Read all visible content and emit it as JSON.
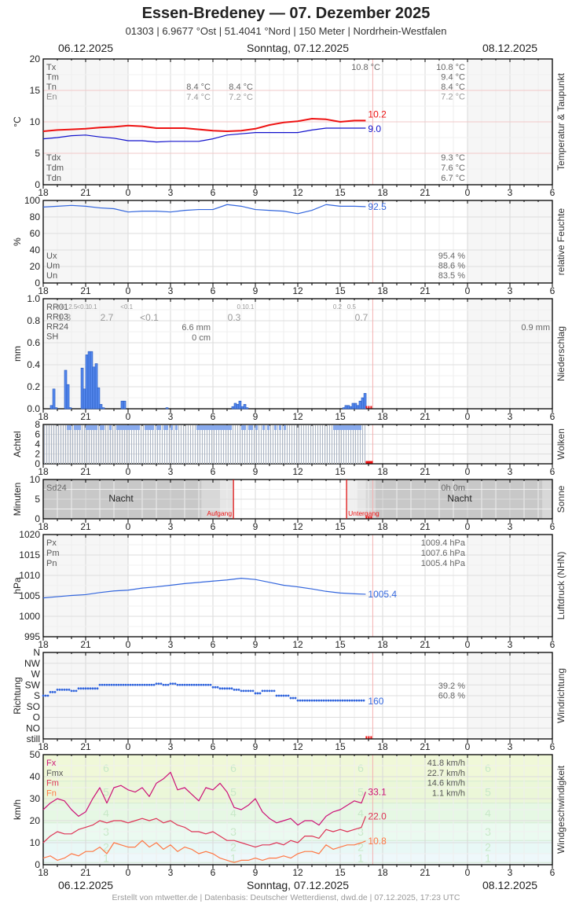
{
  "header": {
    "title": "Essen-Bredeney  —  07. Dezember 2025",
    "subtitle": "01303  |  6.9677 °Ost  |  51.4041 °Nord  |  150 Meter  |  Nordrhein-Westfalen"
  },
  "dates": {
    "left": "06.12.2025",
    "center": "Sonntag, 07.12.2025",
    "right": "08.12.2025"
  },
  "footer": "Erstellt von mtwetter.de | Datenbasis: Deutscher Wetterdienst, dwd.de | 07.12.2025, 17:23 UTC",
  "x_ticks": [
    "18",
    "21",
    "0",
    "3",
    "6",
    "9",
    "12",
    "15",
    "18",
    "21",
    "0",
    "3",
    "6"
  ],
  "colors": {
    "temperature": "#ee1111",
    "dewpoint": "#1111cc",
    "series_blue": "#3366dd",
    "precip_bar": "#5588ee",
    "fx": "#cc1177",
    "fm": "#dd3355",
    "fn": "#ff7744",
    "now_line": "#f4b0b0",
    "sun_line": "#dd1111"
  },
  "chart_data": [
    {
      "type": "line",
      "title": "Temperatur & Taupunkt",
      "ylabel": "°C",
      "ylim": [
        0,
        20
      ],
      "yticks": [
        "0",
        "5",
        "10",
        "15",
        "20"
      ],
      "x_hours_from_18": [
        0,
        1,
        2,
        3,
        4,
        5,
        6,
        7,
        8,
        9,
        10,
        11,
        12,
        13,
        14,
        15,
        16,
        17,
        18,
        19,
        20,
        21,
        22,
        22.8
      ],
      "series": [
        {
          "name": "Temperatur",
          "last": "10.2",
          "values": [
            8.5,
            8.7,
            8.8,
            8.9,
            9.1,
            9.2,
            9.4,
            9.3,
            9.0,
            9.0,
            9.0,
            8.8,
            8.6,
            8.5,
            8.6,
            8.9,
            9.5,
            9.9,
            10.1,
            10.5,
            10.4,
            10.0,
            10.2,
            10.2
          ]
        },
        {
          "name": "Taupunkt",
          "last": "9.0",
          "values": [
            7.3,
            7.5,
            7.8,
            7.9,
            7.6,
            7.4,
            7.0,
            7.0,
            6.8,
            6.9,
            6.9,
            6.9,
            7.3,
            7.9,
            8.1,
            8.3,
            8.3,
            8.3,
            8.3,
            8.7,
            9.0,
            9.0,
            9.0,
            9.0
          ]
        }
      ],
      "labels_left": [
        "Tx",
        "Tm",
        "Tn",
        "En"
      ],
      "labels_left_bottom": [
        "Tdx",
        "Tdm",
        "Tdn"
      ],
      "night1": {
        "Tn": "8.4 °C",
        "En": "7.4 °C"
      },
      "night2": {
        "Tn": "8.4 °C",
        "En": "7.2 °C"
      },
      "day_Tx": "10.8 °C",
      "summary": {
        "Tx": "10.8 °C",
        "Tm": "9.4 °C",
        "Tn": "8.4 °C",
        "En": "7.2 °C",
        "Tdx": "9.3 °C",
        "Tdm": "7.6 °C",
        "Tdn": "6.7 °C"
      }
    },
    {
      "type": "line",
      "title": "relative Feuchte",
      "ylabel": "%",
      "ylim": [
        0,
        100
      ],
      "yticks": [
        "0",
        "20",
        "40",
        "60",
        "80",
        "100"
      ],
      "x_hours_from_18": [
        0,
        1,
        2,
        3,
        4,
        5,
        6,
        7,
        8,
        9,
        10,
        11,
        12,
        13,
        14,
        15,
        16,
        17,
        18,
        19,
        20,
        21,
        22,
        22.8
      ],
      "series": [
        {
          "name": "Feuchte",
          "last": "92.5",
          "values": [
            92,
            93,
            94,
            93,
            91,
            90,
            86,
            87,
            87,
            86,
            88,
            89,
            89,
            95,
            93,
            89,
            88,
            87,
            84,
            88,
            95,
            93,
            93,
            92.5
          ]
        }
      ],
      "labels": [
        "Ux",
        "Um",
        "Un"
      ],
      "summary": {
        "Ux": "95.4 %",
        "Um": "88.6 %",
        "Un": "83.5 %"
      }
    },
    {
      "type": "bar",
      "title": "Niederschlag",
      "ylabel": "mm",
      "ylim": [
        0,
        1.0
      ],
      "yticks": [
        "0.0",
        "0.2",
        "0.4",
        "0.6",
        "0.8",
        "1.0"
      ],
      "bar_width_hours": 0.1667,
      "bars": [
        [
          0.5,
          0.03
        ],
        [
          0.67,
          0.18
        ],
        [
          0.83,
          0.01
        ],
        [
          1.5,
          0.35
        ],
        [
          1.67,
          0.22
        ],
        [
          1.83,
          0.01
        ],
        [
          2.67,
          0.37
        ],
        [
          2.83,
          0.18
        ],
        [
          3.0,
          0.49
        ],
        [
          3.17,
          0.52
        ],
        [
          3.33,
          0.52
        ],
        [
          3.5,
          0.38
        ],
        [
          3.67,
          0.41
        ],
        [
          3.83,
          0.19
        ],
        [
          4.0,
          0.04
        ],
        [
          4.17,
          0.01
        ],
        [
          5.5,
          0.07
        ],
        [
          5.67,
          0.07
        ],
        [
          8.67,
          0.01
        ],
        [
          13.33,
          0.02
        ],
        [
          13.5,
          0.05
        ],
        [
          13.67,
          0.04
        ],
        [
          13.83,
          0.07
        ],
        [
          14.0,
          0.02
        ],
        [
          14.17,
          0.04
        ],
        [
          14.33,
          0.01
        ],
        [
          21.17,
          0.01
        ],
        [
          21.33,
          0.03
        ],
        [
          21.5,
          0.03
        ],
        [
          21.67,
          0.02
        ],
        [
          21.83,
          0.05
        ],
        [
          22.0,
          0.05
        ],
        [
          22.17,
          0.03
        ],
        [
          22.33,
          0.07
        ],
        [
          22.5,
          0.1
        ],
        [
          22.67,
          0.14
        ]
      ],
      "labels": [
        "RR01",
        "RR03",
        "RR24",
        "SH"
      ],
      "rr01": [
        [
          "0.6",
          1.2
        ],
        [
          "2.5",
          2.1
        ],
        [
          "<0.1",
          2.8
        ],
        [
          "0.1",
          3.5
        ],
        [
          "<0.1",
          5.9
        ],
        [
          "0.1",
          14.0
        ],
        [
          "0.1",
          14.6
        ],
        [
          "0.2",
          20.8
        ],
        [
          "0.5",
          21.8
        ]
      ],
      "rr03": [
        [
          "1.3",
          1.5
        ],
        [
          "2.7",
          4.5
        ],
        [
          "<0.1",
          7.5
        ],
        [
          "0.3",
          13.5
        ],
        [
          "0.7",
          22.5
        ]
      ],
      "rr24": "6.6 mm",
      "sh": "0 cm",
      "rr24_next": "0.9 mm"
    },
    {
      "type": "bar",
      "title": "Wolken",
      "ylabel": "Achtel",
      "ylim": [
        0,
        8
      ],
      "yticks": [
        "0",
        "2",
        "4",
        "6",
        "8"
      ],
      "note": "Cloud cover 8/8 throughout with periodic 7/8 readings (blue segments) from 18 to ~17 UTC"
    },
    {
      "type": "bar",
      "title": "Sonne",
      "ylabel": "Minuten",
      "ylim": [
        0,
        10
      ],
      "yticks": [
        "0",
        "5",
        "10"
      ],
      "label": "Sd24",
      "sunrise_label": "Aufgang",
      "sunset_label": "Untergang",
      "sunrise_hour": 7.45,
      "sunset_hour": 15.45,
      "night_label": "Nacht",
      "sd24_value": "0h 0m"
    },
    {
      "type": "line",
      "title": "Luftdruck (NHN)",
      "ylabel": "hPa",
      "ylim": [
        995,
        1020
      ],
      "yticks": [
        "995",
        "1000",
        "1005",
        "1010",
        "1015",
        "1020"
      ],
      "x_hours_from_18": [
        0,
        1,
        2,
        3,
        4,
        5,
        6,
        7,
        8,
        9,
        10,
        11,
        12,
        13,
        14,
        15,
        16,
        17,
        18,
        19,
        20,
        21,
        22,
        22.8
      ],
      "series": [
        {
          "name": "Luftdruck",
          "last": "1005.4",
          "values": [
            1004.5,
            1004.8,
            1005.1,
            1005.3,
            1005.8,
            1006.2,
            1006.4,
            1006.9,
            1007.2,
            1007.6,
            1008.0,
            1008.3,
            1008.6,
            1008.9,
            1009.3,
            1009.0,
            1008.3,
            1007.6,
            1007.2,
            1006.7,
            1006.1,
            1005.7,
            1005.5,
            1005.4
          ]
        }
      ],
      "labels": [
        "Px",
        "Pm",
        "Pn"
      ],
      "summary": {
        "Px": "1009.4 hPa",
        "Pm": "1007.6 hPa",
        "Pn": "1005.4 hPa"
      }
    },
    {
      "type": "scatter",
      "title": "Windrichtung",
      "ylabel": "Richtung",
      "yticks": [
        "still",
        "NO",
        "O",
        "SO",
        "S",
        "SW",
        "W",
        "NW",
        "N"
      ],
      "x_hours_from_18": [
        0,
        0.5,
        1,
        1.5,
        2,
        2.5,
        3,
        3.5,
        4,
        4.5,
        5,
        5.5,
        6,
        6.5,
        7,
        7.5,
        8,
        8.5,
        9,
        9.5,
        10,
        10.5,
        11,
        11.5,
        12,
        12.5,
        13,
        13.5,
        14,
        14.5,
        15,
        15.5,
        16,
        16.5,
        17,
        17.5,
        18,
        18.5,
        19,
        19.5,
        20,
        20.5,
        21,
        21.5,
        22,
        22.5,
        22.8
      ],
      "values_deg": [
        180,
        195,
        205,
        205,
        200,
        210,
        210,
        210,
        225,
        225,
        225,
        225,
        225,
        225,
        225,
        225,
        230,
        225,
        230,
        225,
        225,
        225,
        225,
        225,
        215,
        210,
        210,
        205,
        200,
        200,
        190,
        200,
        200,
        180,
        180,
        170,
        160,
        160,
        160,
        160,
        160,
        160,
        160,
        160,
        160,
        160,
        160
      ],
      "last": "160",
      "summary": [
        "39.2 %",
        "60.8 %"
      ]
    },
    {
      "type": "line",
      "title": "Windgeschwindigkeit",
      "ylabel": "km/h",
      "ylim": [
        0,
        50
      ],
      "yticks": [
        "0",
        "10",
        "20",
        "30",
        "40",
        "50"
      ],
      "x_hours_from_18": [
        0,
        0.5,
        1,
        1.5,
        2,
        2.5,
        3,
        3.5,
        4,
        4.5,
        5,
        5.5,
        6,
        6.5,
        7,
        7.5,
        8,
        8.5,
        9,
        9.5,
        10,
        10.5,
        11,
        11.5,
        12,
        12.5,
        13,
        13.5,
        14,
        14.5,
        15,
        15.5,
        16,
        16.5,
        17,
        17.5,
        18,
        18.5,
        19,
        19.5,
        20,
        20.5,
        21,
        21.5,
        22,
        22.5,
        22.8
      ],
      "series": [
        {
          "name": "Fx",
          "last": "33.1",
          "values": [
            25,
            28,
            30,
            29,
            25,
            22,
            24,
            30,
            35,
            28,
            35,
            36,
            34,
            33,
            35,
            31,
            37,
            39,
            42,
            34,
            35,
            32,
            29,
            35,
            34,
            37,
            33,
            26,
            25,
            27,
            30,
            24,
            21,
            19,
            20,
            21,
            18,
            20,
            20,
            18,
            22,
            24,
            25,
            27,
            29,
            28,
            33.1
          ]
        },
        {
          "name": "Fm",
          "last": "22.0",
          "values": [
            10,
            13,
            15,
            14,
            14,
            16,
            17,
            18,
            20,
            19,
            20,
            20,
            19,
            20,
            21,
            20,
            21,
            19,
            20,
            18,
            17,
            15,
            15,
            14,
            15,
            13,
            11,
            11,
            10,
            9,
            8,
            9,
            9,
            10,
            9,
            11,
            10,
            13,
            13,
            12,
            16,
            15,
            16,
            15,
            16,
            17,
            22.0
          ]
        },
        {
          "name": "Fn",
          "last": "10.8",
          "values": [
            3,
            4,
            2,
            3,
            5,
            4,
            6,
            6,
            8,
            5,
            10,
            9,
            8,
            8,
            11,
            8,
            10,
            7,
            9,
            6,
            8,
            7,
            5,
            6,
            5,
            3,
            2,
            1,
            2,
            2,
            3,
            2,
            3,
            3,
            4,
            3,
            5,
            6,
            6,
            5,
            9,
            7,
            8,
            9,
            9,
            10,
            10.8
          ]
        }
      ],
      "labels": [
        "Fx",
        "Fmx",
        "Fm",
        "Fn"
      ],
      "summary": {
        "Fx": "41.8 km/h",
        "Fmx": "22.7 km/h",
        "Fm": "14.6 km/h",
        "Fn": "1.1 km/h"
      },
      "beaufort_bands": [
        {
          "bft": "1",
          "from": 1,
          "to": 5,
          "color": "#eef8fb"
        },
        {
          "bft": "2",
          "from": 5,
          "to": 11,
          "color": "#e8f8f6"
        },
        {
          "bft": "3",
          "from": 11,
          "to": 19,
          "color": "#ebfaf0"
        },
        {
          "bft": "4",
          "from": 19,
          "to": 28,
          "color": "#e6f8e4"
        },
        {
          "bft": "5",
          "from": 28,
          "to": 38,
          "color": "#ebf7d8"
        },
        {
          "bft": "6",
          "from": 38,
          "to": 50,
          "color": "#f0f8d8"
        }
      ]
    }
  ]
}
